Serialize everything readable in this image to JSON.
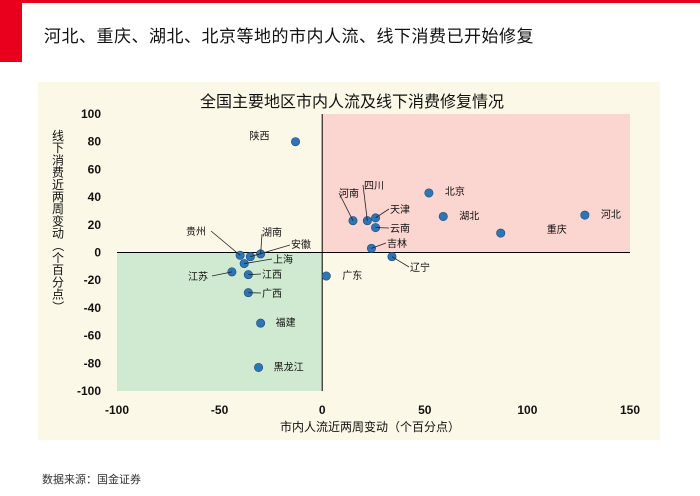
{
  "header": {
    "title": "河北、重庆、湖北、北京等地的市内人流、线下消费已开始修复"
  },
  "footer": {
    "source": "数据来源：国金证券"
  },
  "colors": {
    "accent_red": "#e8001c",
    "quadrant_positive": "#fbd5cf",
    "quadrant_negative": "#cfead0",
    "marker": "#2e75b6"
  },
  "chart_data": {
    "type": "scatter",
    "title": "全国主要地区市内人流及线下消费修复情况",
    "xlabel": "市内人流近两周变动（个百分点）",
    "ylabel": "线下消费近两周变动（个百分点）",
    "xlim": [
      -100,
      150
    ],
    "ylim": [
      -100,
      100
    ],
    "xticks": [
      -100,
      -50,
      0,
      50,
      100,
      150
    ],
    "yticks": [
      100,
      80,
      60,
      40,
      20,
      0,
      -20,
      -40,
      -60,
      -80,
      -100
    ],
    "points": [
      {
        "name": "陕西",
        "x": -13,
        "y": 80
      },
      {
        "name": "北京",
        "x": 52,
        "y": 43
      },
      {
        "name": "四川",
        "x": 22,
        "y": 23
      },
      {
        "name": "河南",
        "x": 15,
        "y": 23
      },
      {
        "name": "天津",
        "x": 26,
        "y": 25
      },
      {
        "name": "云南",
        "x": 26,
        "y": 18
      },
      {
        "name": "湖北",
        "x": 59,
        "y": 26
      },
      {
        "name": "河北",
        "x": 128,
        "y": 27
      },
      {
        "name": "重庆",
        "x": 87,
        "y": 14
      },
      {
        "name": "吉林",
        "x": 24,
        "y": 3
      },
      {
        "name": "辽宁",
        "x": 34,
        "y": -3
      },
      {
        "name": "广东",
        "x": 2,
        "y": -17
      },
      {
        "name": "贵州",
        "x": -40,
        "y": -2
      },
      {
        "name": "湖南",
        "x": -30,
        "y": -1
      },
      {
        "name": "安徽",
        "x": -35,
        "y": -3
      },
      {
        "name": "上海",
        "x": -38,
        "y": -8
      },
      {
        "name": "江苏",
        "x": -44,
        "y": -14
      },
      {
        "name": "江西",
        "x": -36,
        "y": -16
      },
      {
        "name": "广西",
        "x": -36,
        "y": -29
      },
      {
        "name": "福建",
        "x": -30,
        "y": -51
      },
      {
        "name": "黑龙江",
        "x": -31,
        "y": -83
      }
    ]
  }
}
